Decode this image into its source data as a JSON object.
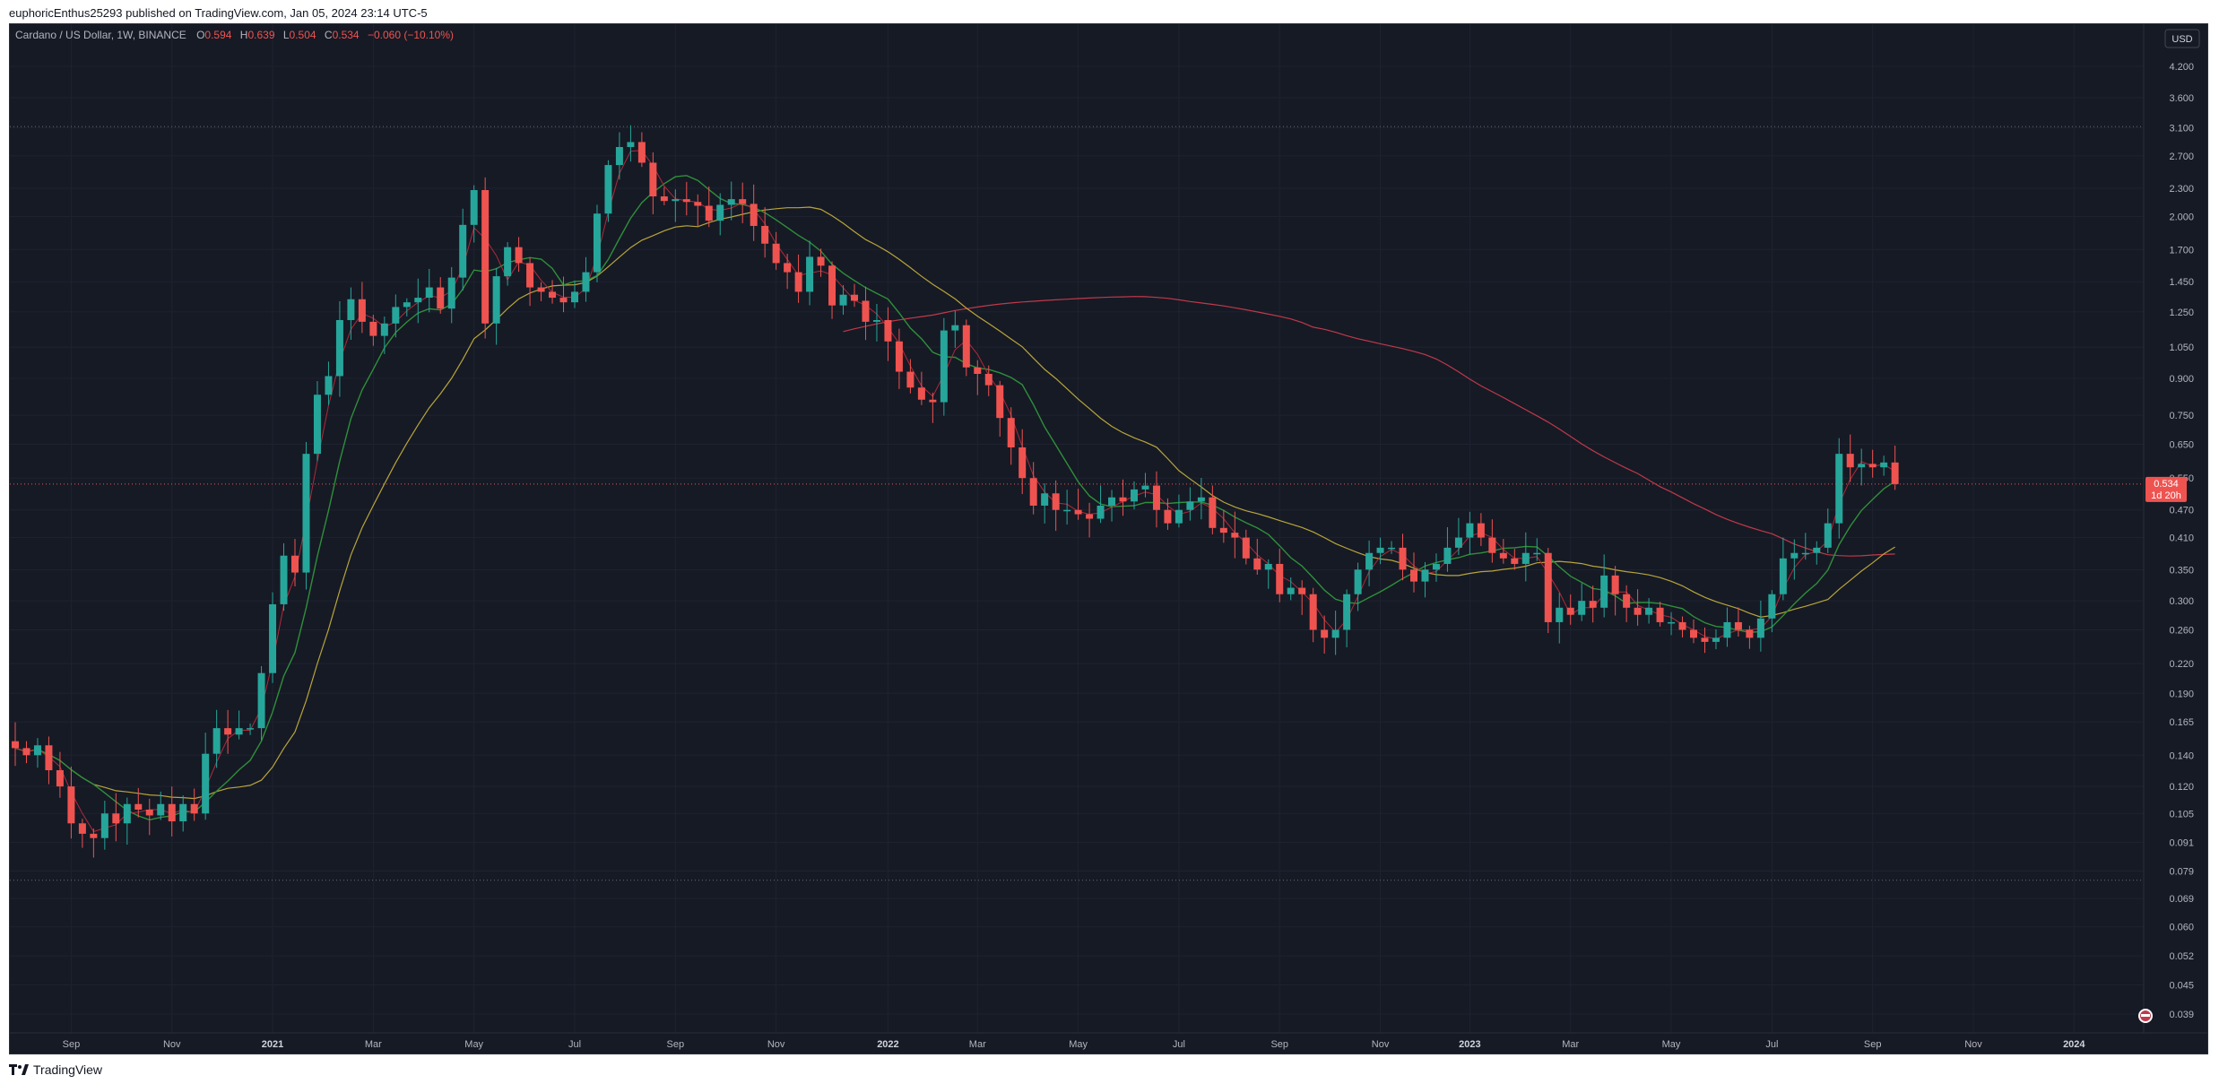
{
  "header": {
    "publisher": "euphoricEnthus25293 published on TradingView.com, Jan 05, 2024 23:14 UTC-5"
  },
  "footer": {
    "brand": "TradingView"
  },
  "symbol_info": {
    "symbol": "Cardano / US Dollar, 1W, BINANCE",
    "open_label": "O",
    "open": "0.594",
    "high_label": "H",
    "high": "0.639",
    "low_label": "L",
    "low": "0.504",
    "close_label": "C",
    "close": "0.534",
    "change": "−0.060 (−10.10%)"
  },
  "currency": "USD",
  "last_price_label": {
    "price": "0.534",
    "countdown": "1d 20h"
  },
  "colors": {
    "background": "#161a25",
    "up": "#26a69a",
    "down": "#ef5350",
    "ma_fast": "#b02a3a",
    "ma_mid": "#2f8f3a",
    "ma_slow": "#b8a53a",
    "ma_long": "#c0394a",
    "text": "#b2b5be",
    "grid": "#1f2330"
  },
  "chart_data": {
    "type": "candlestick",
    "y_scale": "log",
    "y_ticks": [
      "4.200",
      "3.600",
      "3.100",
      "2.700",
      "2.300",
      "2.000",
      "1.700",
      "1.450",
      "1.250",
      "1.050",
      "0.900",
      "0.750",
      "0.650",
      "0.550",
      "0.470",
      "0.410",
      "0.350",
      "0.300",
      "0.260",
      "0.220",
      "0.190",
      "0.165",
      "0.140",
      "0.120",
      "0.105",
      "0.091",
      "0.079",
      "0.069",
      "0.060",
      "0.052",
      "0.045",
      "0.039"
    ],
    "x_ticks": [
      {
        "label": "Sep",
        "t": 5
      },
      {
        "label": "Nov",
        "t": 14
      },
      {
        "label": "2021",
        "t": 23
      },
      {
        "label": "Mar",
        "t": 32
      },
      {
        "label": "May",
        "t": 41
      },
      {
        "label": "Jul",
        "t": 50
      },
      {
        "label": "Sep",
        "t": 59
      },
      {
        "label": "Nov",
        "t": 68
      },
      {
        "label": "2022",
        "t": 78
      },
      {
        "label": "Mar",
        "t": 86
      },
      {
        "label": "May",
        "t": 95
      },
      {
        "label": "Jul",
        "t": 104
      },
      {
        "label": "Sep",
        "t": 113
      },
      {
        "label": "Nov",
        "t": 122
      },
      {
        "label": "2023",
        "t": 130
      },
      {
        "label": "Mar",
        "t": 139
      },
      {
        "label": "May",
        "t": 148
      },
      {
        "label": "Jul",
        "t": 157
      },
      {
        "label": "Sep",
        "t": 166
      },
      {
        "label": "Nov",
        "t": 175
      },
      {
        "label": "2024",
        "t": 184
      }
    ],
    "horizontal_lines": [
      3.12,
      0.0755
    ],
    "close_line": 0.534,
    "closes": [
      0.145,
      0.14,
      0.147,
      0.13,
      0.12,
      0.1,
      0.095,
      0.093,
      0.105,
      0.1,
      0.11,
      0.107,
      0.104,
      0.11,
      0.101,
      0.11,
      0.105,
      0.141,
      0.16,
      0.155,
      0.16,
      0.16,
      0.21,
      0.295,
      0.375,
      0.345,
      0.62,
      0.83,
      0.91,
      1.2,
      1.33,
      1.19,
      1.11,
      1.18,
      1.28,
      1.31,
      1.34,
      1.41,
      1.27,
      1.48,
      1.92,
      2.28,
      1.18,
      1.49,
      1.72,
      1.59,
      1.41,
      1.38,
      1.34,
      1.31,
      1.38,
      1.52,
      2.03,
      2.58,
      2.82,
      2.89,
      2.61,
      2.21,
      2.16,
      2.18,
      2.15,
      2.11,
      1.96,
      2.12,
      2.18,
      2.13,
      1.91,
      1.75,
      1.59,
      1.52,
      1.38,
      1.64,
      1.57,
      1.29,
      1.36,
      1.32,
      1.19,
      1.2,
      1.08,
      0.93,
      0.86,
      0.81,
      0.8,
      1.14,
      1.17,
      0.95,
      0.92,
      0.87,
      0.74,
      0.64,
      0.55,
      0.48,
      0.51,
      0.47,
      0.47,
      0.46,
      0.45,
      0.48,
      0.5,
      0.49,
      0.52,
      0.53,
      0.47,
      0.44,
      0.47,
      0.49,
      0.5,
      0.43,
      0.42,
      0.41,
      0.37,
      0.35,
      0.36,
      0.31,
      0.32,
      0.31,
      0.26,
      0.25,
      0.26,
      0.31,
      0.35,
      0.38,
      0.39,
      0.39,
      0.35,
      0.33,
      0.35,
      0.36,
      0.39,
      0.41,
      0.44,
      0.41,
      0.38,
      0.37,
      0.36,
      0.38,
      0.38,
      0.27,
      0.29,
      0.28,
      0.3,
      0.29,
      0.34,
      0.31,
      0.29,
      0.28,
      0.29,
      0.27,
      0.27,
      0.26,
      0.25,
      0.245,
      0.25,
      0.27,
      0.26,
      0.25,
      0.275,
      0.31,
      0.37,
      0.38,
      0.38,
      0.39,
      0.44,
      0.62,
      0.58,
      0.59,
      0.58,
      0.594,
      0.534
    ]
  }
}
